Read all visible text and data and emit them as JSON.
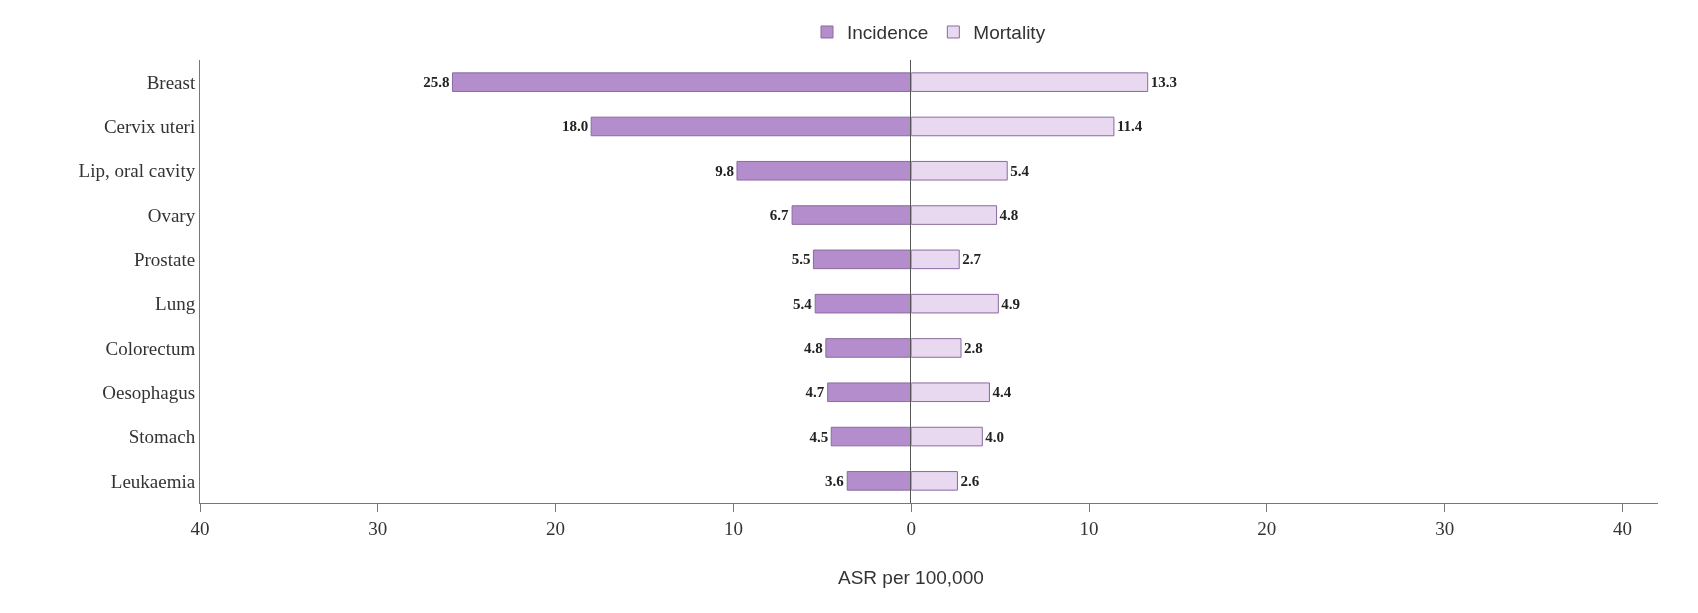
{
  "chart_data": [
    {
      "type": "bar",
      "orientation": "horizontal",
      "xlabel": "ASR per 100,000",
      "categories": [
        "Breast",
        "Cervix uteri",
        "Lip, oral cavity",
        "Ovary",
        "Prostate",
        "Lung",
        "Colorectum",
        "Oesophagus",
        "Stomach",
        "Leukaemia"
      ],
      "series": [
        {
          "name": "Incidence",
          "color": "#b48dcc",
          "values": [
            25.8,
            18.0,
            9.8,
            6.7,
            5.5,
            5.4,
            4.8,
            4.7,
            4.5,
            3.6
          ],
          "value_labels": [
            "25.8",
            "18.0",
            "9.8",
            "6.7",
            "5.5",
            "5.4",
            "4.8",
            "4.7",
            "4.5",
            "3.6"
          ]
        }
      ],
      "xlim": [
        40,
        0
      ],
      "xticks": [
        40,
        30,
        20,
        10,
        0
      ],
      "legend": "top"
    },
    {
      "type": "bar",
      "orientation": "horizontal",
      "categories": [
        "Breast",
        "Cervix uteri",
        "Lip, oral cavity",
        "Ovary",
        "Prostate",
        "Lung",
        "Colorectum",
        "Oesophagus",
        "Stomach",
        "Leukaemia"
      ],
      "series": [
        {
          "name": "Mortality",
          "color": "#e8d8f0",
          "values": [
            13.3,
            11.4,
            5.4,
            4.8,
            2.7,
            4.9,
            2.8,
            4.4,
            4.0,
            2.6
          ],
          "value_labels": [
            "13.3",
            "11.4",
            "5.4",
            "4.8",
            "2.7",
            "4.9",
            "2.8",
            "4.4",
            "4.0",
            "2.6"
          ]
        }
      ],
      "xlim": [
        0,
        42
      ],
      "xticks": [
        10,
        20,
        30,
        40
      ],
      "legend": "top",
      "tick_labels": "x"
    }
  ]
}
